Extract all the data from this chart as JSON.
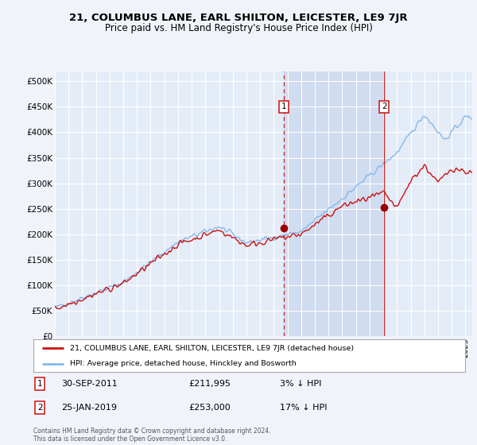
{
  "title": "21, COLUMBUS LANE, EARL SHILTON, LEICESTER, LE9 7JR",
  "subtitle": "Price paid vs. HM Land Registry's House Price Index (HPI)",
  "ylim": [
    0,
    520000
  ],
  "yticks": [
    0,
    50000,
    100000,
    150000,
    200000,
    250000,
    300000,
    350000,
    400000,
    450000,
    500000
  ],
  "ytick_labels": [
    "£0",
    "£50K",
    "£100K",
    "£150K",
    "£200K",
    "£250K",
    "£300K",
    "£350K",
    "£400K",
    "£450K",
    "£500K"
  ],
  "xlim_start": 1995.0,
  "xlim_end": 2025.5,
  "background_color": "#f0f4fa",
  "plot_bg_color": "#e4ecf7",
  "shade_color": "#d0dcf0",
  "grid_color": "#ffffff",
  "line_color_hpi": "#85b8e8",
  "line_color_price": "#cc1111",
  "marker_color": "#990000",
  "dashed_line_color": "#cc2222",
  "solid_line_color": "#cc2222",
  "sale1_x": 2011.75,
  "sale1_y": 211995,
  "sale1_label": "30-SEP-2011",
  "sale1_price": "£211,995",
  "sale1_note": "3% ↓ HPI",
  "sale2_x": 2019.07,
  "sale2_y": 253000,
  "sale2_label": "25-JAN-2019",
  "sale2_price": "£253,000",
  "sale2_note": "17% ↓ HPI",
  "legend_label_price": "21, COLUMBUS LANE, EARL SHILTON, LEICESTER, LE9 7JR (detached house)",
  "legend_label_hpi": "HPI: Average price, detached house, Hinckley and Bosworth",
  "footer": "Contains HM Land Registry data © Crown copyright and database right 2024.\nThis data is licensed under the Open Government Licence v3.0."
}
